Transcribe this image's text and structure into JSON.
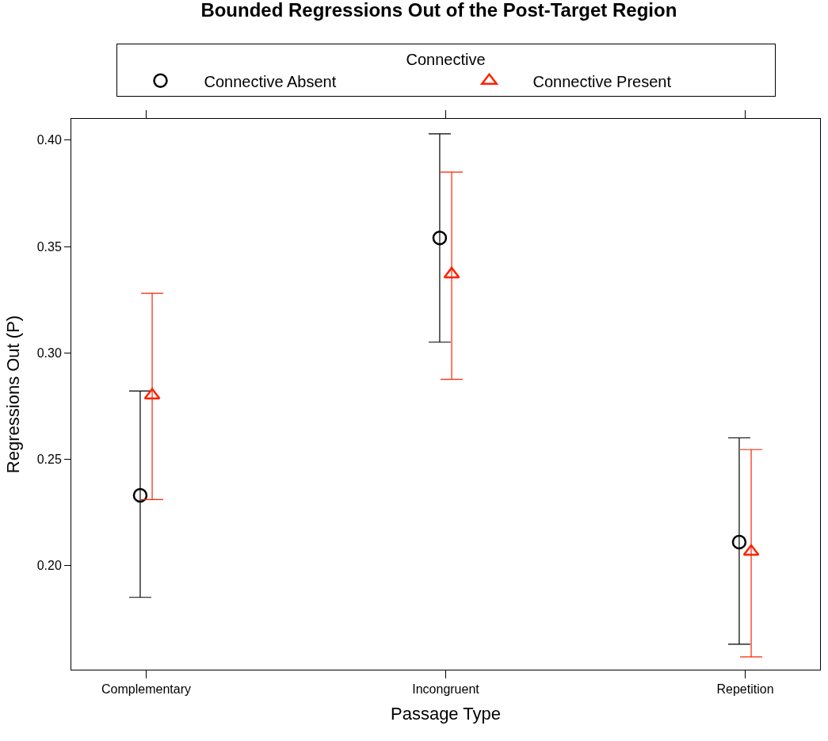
{
  "chart_data": {
    "type": "scatter",
    "title": "Bounded Regressions Out of the Post-Target Region",
    "xlabel": "Passage Type",
    "ylabel": "Regressions Out (P)",
    "legend_title": "Connective",
    "legend": "top",
    "categories": [
      "Complementary",
      "Incongruent",
      "Repetition"
    ],
    "series": [
      {
        "name": "Connective Absent",
        "color": "#000000",
        "marker": "circle",
        "values": [
          0.233,
          0.354,
          0.211
        ],
        "errors": [
          [
            0.185,
            0.282
          ],
          [
            0.305,
            0.403
          ],
          [
            0.163,
            0.26
          ]
        ]
      },
      {
        "name": "Connective Present",
        "color": "#ff2200",
        "marker": "triangle",
        "values": [
          0.28,
          0.337,
          0.2065
        ],
        "errors": [
          [
            0.231,
            0.328
          ],
          [
            0.2875,
            0.385
          ],
          [
            0.157,
            0.2545
          ]
        ]
      }
    ],
    "ylim": [
      0.151,
      0.41
    ],
    "yticks": [
      {
        "value": 0.2,
        "label": "0.20"
      },
      {
        "value": 0.25,
        "label": "0.25"
      },
      {
        "value": 0.3,
        "label": "0.30"
      },
      {
        "value": 0.35,
        "label": "0.35"
      },
      {
        "value": 0.4,
        "label": "0.40"
      }
    ]
  }
}
